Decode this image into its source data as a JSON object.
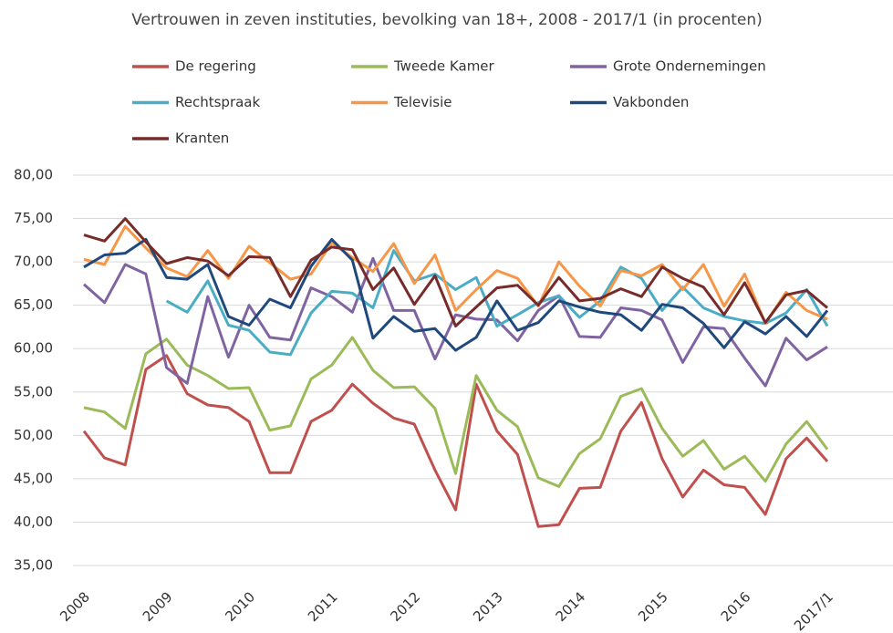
{
  "chart_data": {
    "type": "line",
    "title": "Vertrouwen in zeven instituties, bevolking van 18+, 2008 - 2017/1 (in procenten)",
    "categories": [
      "2008",
      null,
      null,
      null,
      "2009",
      null,
      null,
      null,
      "2010",
      null,
      null,
      null,
      "2011",
      null,
      null,
      null,
      "2012",
      null,
      null,
      null,
      "2013",
      null,
      null,
      null,
      "2014",
      null,
      null,
      null,
      "2015",
      null,
      null,
      null,
      "2016",
      null,
      null,
      null,
      "2017/1"
    ],
    "ylim": [
      35,
      80
    ],
    "yticks": [
      {
        "value": 35,
        "label": "35,00"
      },
      {
        "value": 40,
        "label": "40,00"
      },
      {
        "value": 45,
        "label": "45,00"
      },
      {
        "value": 50,
        "label": "50,00"
      },
      {
        "value": 55,
        "label": "55,00"
      },
      {
        "value": 60,
        "label": "60,00"
      },
      {
        "value": 65,
        "label": "65,00"
      },
      {
        "value": 70,
        "label": "70,00"
      },
      {
        "value": 75,
        "label": "75,00"
      },
      {
        "value": 80,
        "label": "80,00"
      }
    ],
    "grid": true,
    "legend": "top",
    "series": [
      {
        "name": "De regering",
        "color": "#c0504d",
        "values": [
          50.5,
          47.4,
          46.6,
          57.6,
          59.2,
          54.8,
          53.5,
          53.2,
          51.6,
          45.7,
          45.7,
          51.6,
          52.9,
          55.9,
          53.7,
          52.0,
          51.3,
          46.0,
          41.4,
          55.9,
          50.5,
          47.8,
          39.5,
          39.7,
          43.9,
          44.0,
          50.5,
          53.8,
          47.3,
          42.9,
          46.0,
          44.3,
          44.0,
          40.9,
          47.3,
          49.7,
          47.0
        ]
      },
      {
        "name": "Tweede Kamer",
        "color": "#9bbb59",
        "values": [
          53.2,
          52.7,
          50.8,
          59.4,
          61.1,
          58.1,
          56.9,
          55.4,
          55.5,
          50.6,
          51.1,
          56.5,
          58.1,
          61.3,
          57.5,
          55.5,
          55.6,
          53.1,
          45.6,
          56.9,
          52.9,
          51.0,
          45.1,
          44.1,
          47.9,
          49.6,
          54.5,
          55.4,
          50.8,
          47.6,
          49.4,
          46.1,
          47.6,
          44.7,
          49.0,
          51.6,
          48.4
        ]
      },
      {
        "name": "Grote Ondernemingen",
        "color": "#8064a2",
        "values": [
          67.4,
          65.3,
          69.7,
          68.6,
          57.8,
          56.0,
          66.0,
          59.0,
          65.0,
          61.3,
          61.0,
          67.0,
          66.0,
          64.2,
          70.4,
          64.4,
          64.4,
          58.8,
          63.9,
          63.4,
          63.3,
          60.9,
          64.4,
          66.1,
          61.4,
          61.3,
          64.7,
          64.4,
          63.3,
          58.4,
          62.5,
          62.3,
          58.9,
          55.7,
          61.2,
          58.7,
          60.2
        ]
      },
      {
        "name": "Rechtspraak",
        "color": "#4bacc6",
        "values": [
          null,
          null,
          null,
          null,
          65.5,
          64.2,
          67.8,
          62.7,
          62.1,
          59.6,
          59.3,
          64.1,
          66.6,
          66.4,
          64.7,
          71.3,
          67.8,
          68.6,
          66.8,
          68.2,
          62.6,
          63.9,
          65.3,
          66.1,
          63.6,
          65.5,
          69.4,
          68.1,
          64.4,
          67.1,
          64.7,
          63.7,
          63.2,
          62.9,
          64.1,
          66.8,
          62.6
        ]
      },
      {
        "name": "Televisie",
        "color": "#f79646",
        "values": [
          70.3,
          69.7,
          74.1,
          71.6,
          69.3,
          68.3,
          71.3,
          68.1,
          71.8,
          69.9,
          68.0,
          68.6,
          72.2,
          70.5,
          68.9,
          72.1,
          67.5,
          70.8,
          64.4,
          66.8,
          69.0,
          68.1,
          64.9,
          70.0,
          67.2,
          64.9,
          69.0,
          68.4,
          69.7,
          66.8,
          69.7,
          64.9,
          68.6,
          62.9,
          66.5,
          64.4,
          63.4
        ]
      },
      {
        "name": "Vakbonden",
        "color": "#1f497d",
        "values": [
          69.4,
          70.8,
          71.0,
          72.6,
          68.2,
          68.0,
          69.7,
          63.7,
          62.7,
          65.7,
          64.7,
          69.5,
          72.6,
          70.2,
          61.2,
          63.7,
          62.0,
          62.3,
          59.8,
          61.3,
          65.5,
          62.1,
          63.0,
          65.5,
          64.8,
          64.2,
          63.9,
          62.1,
          65.1,
          64.7,
          62.9,
          60.1,
          63.1,
          61.7,
          63.7,
          61.4,
          64.4
        ]
      },
      {
        "name": "Kranten",
        "color": "#772c2a",
        "values": [
          73.1,
          72.4,
          75.0,
          72.3,
          69.8,
          70.5,
          70.1,
          68.4,
          70.6,
          70.5,
          66.0,
          70.2,
          71.7,
          71.4,
          66.8,
          69.3,
          65.1,
          68.4,
          62.6,
          64.8,
          67.0,
          67.3,
          65.0,
          68.2,
          65.5,
          65.8,
          66.9,
          66.0,
          69.4,
          68.1,
          67.1,
          63.9,
          67.6,
          63.0,
          66.2,
          66.7,
          64.7
        ]
      }
    ]
  }
}
